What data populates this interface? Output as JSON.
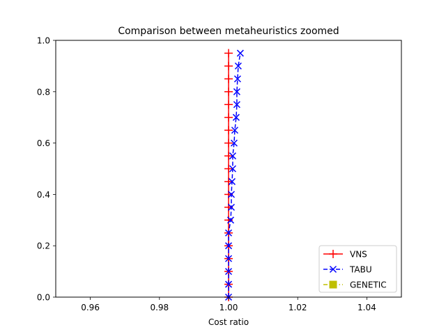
{
  "chart_data": {
    "type": "line",
    "title": "Comparison between metaheuristics zoomed",
    "xlabel": "Cost ratio",
    "ylabel": "",
    "xlim": [
      0.95,
      1.05
    ],
    "ylim": [
      0.0,
      1.0
    ],
    "xticks": [
      "0.96",
      "0.98",
      "1.00",
      "1.02",
      "1.04"
    ],
    "yticks": [
      "0.0",
      "0.2",
      "0.4",
      "0.6",
      "0.8",
      "1.0"
    ],
    "grid": false,
    "legend_position": "lower-right",
    "series": [
      {
        "name": "VNS",
        "color": "#ff0000",
        "marker": "plus",
        "linestyle": "solid",
        "points": [
          [
            1.0,
            0.0
          ],
          [
            1.0,
            0.05
          ],
          [
            1.0,
            0.1
          ],
          [
            1.0,
            0.15
          ],
          [
            1.0,
            0.2
          ],
          [
            1.0,
            0.25
          ],
          [
            1.0,
            0.3
          ],
          [
            1.0,
            0.35
          ],
          [
            1.0,
            0.4
          ],
          [
            1.0,
            0.45
          ],
          [
            1.0,
            0.5
          ],
          [
            1.0,
            0.55
          ],
          [
            1.0,
            0.6
          ],
          [
            1.0,
            0.65
          ],
          [
            1.0,
            0.7
          ],
          [
            1.0,
            0.75
          ],
          [
            1.0,
            0.8
          ],
          [
            1.0,
            0.85
          ],
          [
            1.0,
            0.9
          ],
          [
            1.0,
            0.95
          ]
        ]
      },
      {
        "name": "TABU",
        "color": "#0000ff",
        "marker": "x",
        "linestyle": "dashed",
        "points": [
          [
            1.0,
            0.0
          ],
          [
            1.0,
            0.05
          ],
          [
            1.0,
            0.1
          ],
          [
            1.0,
            0.15
          ],
          [
            1.0,
            0.2
          ],
          [
            1.0,
            0.25
          ],
          [
            1.0006,
            0.3
          ],
          [
            1.0008,
            0.35
          ],
          [
            1.0008,
            0.4
          ],
          [
            1.001,
            0.45
          ],
          [
            1.0012,
            0.5
          ],
          [
            1.0012,
            0.55
          ],
          [
            1.0016,
            0.6
          ],
          [
            1.0018,
            0.65
          ],
          [
            1.0022,
            0.7
          ],
          [
            1.0024,
            0.75
          ],
          [
            1.0024,
            0.8
          ],
          [
            1.0026,
            0.85
          ],
          [
            1.0028,
            0.9
          ],
          [
            1.0034,
            0.95
          ]
        ]
      },
      {
        "name": "GENETIC",
        "color": "#bfbf00",
        "marker": "square",
        "linestyle": "dashdot",
        "points": []
      }
    ]
  }
}
